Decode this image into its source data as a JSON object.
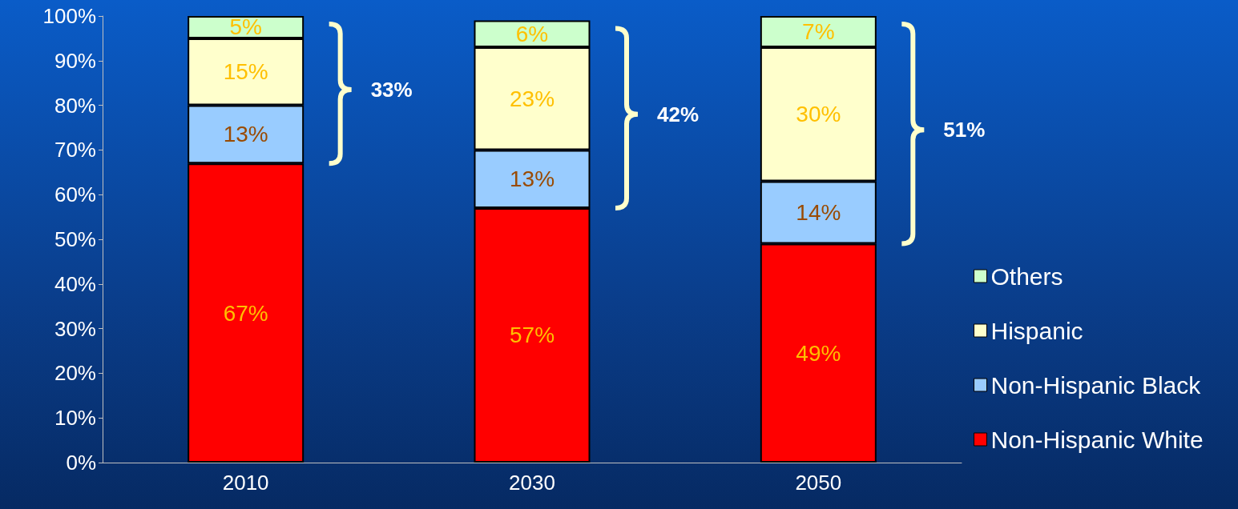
{
  "chart_data": {
    "type": "bar",
    "stacked": true,
    "categories": [
      "2010",
      "2030",
      "2050"
    ],
    "series": [
      {
        "name": "Non-Hispanic White",
        "color": "#ff0000",
        "values": [
          67,
          57,
          49
        ],
        "value_labels": [
          "67%",
          "57%",
          "49%"
        ]
      },
      {
        "name": "Non-Hispanic Black",
        "color": "#99ccff",
        "values": [
          13,
          13,
          14
        ],
        "value_labels": [
          "13%",
          "13%",
          "14%"
        ]
      },
      {
        "name": "Hispanic",
        "color": "#ffffcc",
        "values": [
          15,
          23,
          30
        ],
        "value_labels": [
          "15%",
          "23%",
          "30%"
        ]
      },
      {
        "name": "Others",
        "color": "#ccffcc",
        "values": [
          5,
          6,
          7
        ],
        "value_labels": [
          "5%",
          "6%",
          "7%"
        ]
      }
    ],
    "ylim": [
      0,
      100
    ],
    "yticks": [
      {
        "value": 0,
        "label": "0%"
      },
      {
        "value": 10,
        "label": "10%"
      },
      {
        "value": 20,
        "label": "20%"
      },
      {
        "value": 30,
        "label": "30%"
      },
      {
        "value": 40,
        "label": "40%"
      },
      {
        "value": 50,
        "label": "50%"
      },
      {
        "value": 60,
        "label": "60%"
      },
      {
        "value": 70,
        "label": "70%"
      },
      {
        "value": 80,
        "label": "80%"
      },
      {
        "value": 90,
        "label": "90%"
      },
      {
        "value": 100,
        "label": "100%"
      }
    ],
    "annotations": [
      "33%",
      "42%",
      "51%"
    ],
    "grid": false,
    "legend": "right"
  }
}
